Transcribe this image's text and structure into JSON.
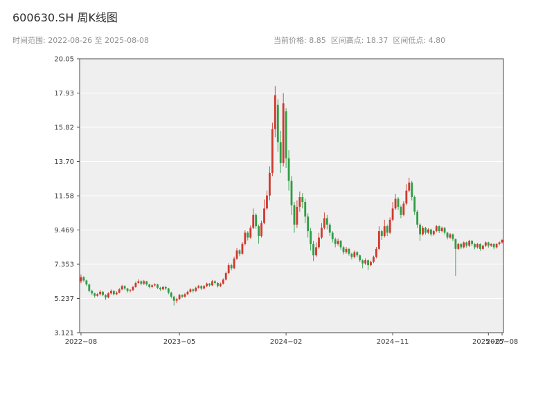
{
  "header": {
    "title": "600630.SH 周K线图",
    "subtitle_left": "时间范围: 2022-08-26 至 2025-08-08",
    "subtitle_right": "当前价格: 8.85  区间高点: 18.37  区间低点: 4.80"
  },
  "chart_data": {
    "type": "candlestick",
    "title": "600630.SH 周K线图",
    "frequency": "weekly",
    "symbol": "600630.SH",
    "current_price": 8.85,
    "range_high": 18.37,
    "range_low": 4.8,
    "date_range": [
      "2022-08-26",
      "2025-08-08"
    ],
    "ylim": [
      3.121,
      20.05
    ],
    "grid": true,
    "legend": "none",
    "xlabel": "",
    "ylabel": "",
    "panel_bg": "#efefef",
    "grid_color": "#ffffff",
    "spine_color": "#4a4a4a",
    "tick_label_color": "#3a3a3a",
    "up_color": "#cf3a2e",
    "down_color": "#2f9e44",
    "y_ticks": [
      {
        "label": "20.05",
        "value": 20.05
      },
      {
        "label": "17.93",
        "value": 17.93
      },
      {
        "label": "15.82",
        "value": 15.82
      },
      {
        "label": "13.70",
        "value": 13.7
      },
      {
        "label": "11.58",
        "value": 11.58
      },
      {
        "label": "9.469",
        "value": 9.469
      },
      {
        "label": "7.353",
        "value": 7.353
      },
      {
        "label": "5.237",
        "value": 5.237
      },
      {
        "label": "3.121",
        "value": 3.121
      }
    ],
    "x_ticks": [
      {
        "label": "2022−08",
        "date": "2022-08-26"
      },
      {
        "label": "2023−05",
        "date": "2023-05-05"
      },
      {
        "label": "2024−02",
        "date": "2024-02-02"
      },
      {
        "label": "2024−11",
        "date": "2024-11-01"
      },
      {
        "label": "2025−07",
        "date": "2025-07-04"
      },
      {
        "label": "2025−08",
        "date": "2025-08-08"
      }
    ],
    "ohlc_fields": [
      "date",
      "open",
      "high",
      "low",
      "close"
    ],
    "candles": [
      [
        "2022-08-26",
        6.3,
        6.72,
        6.18,
        6.55
      ],
      [
        "2022-09-02",
        6.55,
        6.62,
        6.25,
        6.35
      ],
      [
        "2022-09-09",
        6.35,
        6.4,
        6.0,
        6.1
      ],
      [
        "2022-09-16",
        6.1,
        6.15,
        5.62,
        5.7
      ],
      [
        "2022-09-23",
        5.7,
        5.78,
        5.45,
        5.55
      ],
      [
        "2022-09-30",
        5.55,
        5.6,
        5.28,
        5.4
      ],
      [
        "2022-10-07",
        5.4,
        5.58,
        5.35,
        5.5
      ],
      [
        "2022-10-14",
        5.5,
        5.75,
        5.42,
        5.65
      ],
      [
        "2022-10-21",
        5.65,
        5.7,
        5.38,
        5.45
      ],
      [
        "2022-10-28",
        5.45,
        5.5,
        5.15,
        5.3
      ],
      [
        "2022-11-04",
        5.3,
        5.62,
        5.25,
        5.55
      ],
      [
        "2022-11-11",
        5.55,
        5.8,
        5.48,
        5.7
      ],
      [
        "2022-11-18",
        5.7,
        5.75,
        5.42,
        5.5
      ],
      [
        "2022-11-25",
        5.5,
        5.68,
        5.44,
        5.6
      ],
      [
        "2022-12-02",
        5.6,
        5.88,
        5.55,
        5.8
      ],
      [
        "2022-12-09",
        5.8,
        6.08,
        5.74,
        6.0
      ],
      [
        "2022-12-16",
        6.0,
        6.05,
        5.76,
        5.85
      ],
      [
        "2022-12-23",
        5.85,
        5.9,
        5.6,
        5.7
      ],
      [
        "2022-12-30",
        5.7,
        5.82,
        5.62,
        5.75
      ],
      [
        "2023-01-06",
        5.75,
        6.02,
        5.7,
        5.95
      ],
      [
        "2023-01-13",
        5.95,
        6.28,
        5.9,
        6.2
      ],
      [
        "2023-01-20",
        6.2,
        6.42,
        6.12,
        6.3
      ],
      [
        "2023-01-27",
        6.3,
        6.35,
        6.05,
        6.15
      ],
      [
        "2023-02-03",
        6.15,
        6.38,
        6.08,
        6.3
      ],
      [
        "2023-02-10",
        6.3,
        6.33,
        6.02,
        6.1
      ],
      [
        "2023-02-17",
        6.1,
        6.15,
        5.86,
        5.95
      ],
      [
        "2023-02-24",
        5.95,
        6.12,
        5.88,
        6.05
      ],
      [
        "2023-03-03",
        6.05,
        6.18,
        5.98,
        6.1
      ],
      [
        "2023-03-10",
        6.1,
        6.14,
        5.82,
        5.9
      ],
      [
        "2023-03-17",
        5.9,
        5.96,
        5.7,
        5.8
      ],
      [
        "2023-03-24",
        5.8,
        6.02,
        5.74,
        5.95
      ],
      [
        "2023-03-31",
        5.95,
        6.0,
        5.76,
        5.85
      ],
      [
        "2023-04-07",
        5.85,
        5.9,
        5.5,
        5.6
      ],
      [
        "2023-04-14",
        5.6,
        5.65,
        5.24,
        5.35
      ],
      [
        "2023-04-21",
        5.35,
        5.4,
        4.8,
        5.1
      ],
      [
        "2023-04-28",
        5.1,
        5.28,
        4.95,
        5.2
      ],
      [
        "2023-05-05",
        5.2,
        5.52,
        5.14,
        5.45
      ],
      [
        "2023-05-12",
        5.45,
        5.5,
        5.26,
        5.35
      ],
      [
        "2023-05-19",
        5.35,
        5.58,
        5.28,
        5.5
      ],
      [
        "2023-05-26",
        5.5,
        5.72,
        5.44,
        5.65
      ],
      [
        "2023-06-02",
        5.65,
        5.88,
        5.6,
        5.8
      ],
      [
        "2023-06-09",
        5.8,
        5.85,
        5.6,
        5.7
      ],
      [
        "2023-06-16",
        5.7,
        5.96,
        5.64,
        5.9
      ],
      [
        "2023-06-23",
        5.9,
        6.08,
        5.84,
        6.0
      ],
      [
        "2023-06-30",
        6.0,
        6.05,
        5.76,
        5.85
      ],
      [
        "2023-07-07",
        5.85,
        6.06,
        5.8,
        6.0
      ],
      [
        "2023-07-14",
        6.0,
        6.22,
        5.94,
        6.15
      ],
      [
        "2023-07-21",
        6.15,
        6.2,
        5.96,
        6.05
      ],
      [
        "2023-07-28",
        6.05,
        6.38,
        6.0,
        6.3
      ],
      [
        "2023-08-04",
        6.3,
        6.36,
        6.1,
        6.2
      ],
      [
        "2023-08-11",
        6.2,
        6.25,
        5.92,
        6.0
      ],
      [
        "2023-08-18",
        6.0,
        6.22,
        5.94,
        6.15
      ],
      [
        "2023-08-25",
        6.15,
        6.48,
        6.1,
        6.4
      ],
      [
        "2023-09-01",
        6.4,
        6.9,
        6.35,
        6.8
      ],
      [
        "2023-09-08",
        6.8,
        7.42,
        6.74,
        7.3
      ],
      [
        "2023-09-15",
        7.3,
        7.38,
        6.98,
        7.1
      ],
      [
        "2023-09-22",
        7.1,
        7.82,
        7.04,
        7.7
      ],
      [
        "2023-09-29",
        7.7,
        8.35,
        7.62,
        8.2
      ],
      [
        "2023-10-06",
        8.2,
        8.28,
        7.85,
        8.0
      ],
      [
        "2023-10-13",
        8.0,
        8.72,
        7.94,
        8.6
      ],
      [
        "2023-10-20",
        8.6,
        9.45,
        8.52,
        9.3
      ],
      [
        "2023-10-27",
        9.3,
        9.4,
        8.82,
        9.0
      ],
      [
        "2023-11-03",
        9.0,
        9.75,
        8.92,
        9.6
      ],
      [
        "2023-11-10",
        9.6,
        10.8,
        9.52,
        10.4
      ],
      [
        "2023-11-17",
        10.4,
        10.5,
        9.55,
        9.7
      ],
      [
        "2023-11-24",
        9.7,
        9.8,
        8.62,
        9.1
      ],
      [
        "2023-12-01",
        9.1,
        10.05,
        9.0,
        9.9
      ],
      [
        "2023-12-08",
        9.9,
        11.35,
        9.82,
        10.8
      ],
      [
        "2023-12-15",
        10.8,
        11.9,
        10.7,
        11.6
      ],
      [
        "2023-12-22",
        11.6,
        13.4,
        11.3,
        13.0
      ],
      [
        "2023-12-29",
        13.0,
        16.1,
        12.8,
        15.7
      ],
      [
        "2024-01-05",
        15.7,
        18.37,
        15.2,
        17.8
      ],
      [
        "2024-01-12",
        17.2,
        17.55,
        14.3,
        14.9
      ],
      [
        "2024-01-19",
        14.9,
        15.6,
        13.0,
        13.6
      ],
      [
        "2024-01-26",
        13.6,
        17.93,
        13.4,
        17.3
      ],
      [
        "2024-02-02",
        16.8,
        17.0,
        13.3,
        13.9
      ],
      [
        "2024-02-09",
        13.9,
        14.4,
        11.9,
        12.5
      ],
      [
        "2024-02-16",
        12.5,
        12.8,
        10.4,
        11.0
      ],
      [
        "2024-02-23",
        11.0,
        11.2,
        9.3,
        9.8
      ],
      [
        "2024-03-01",
        9.8,
        11.3,
        9.6,
        10.9
      ],
      [
        "2024-03-08",
        10.9,
        11.85,
        10.6,
        11.5
      ],
      [
        "2024-03-15",
        11.5,
        11.75,
        10.8,
        11.2
      ],
      [
        "2024-03-22",
        11.2,
        11.4,
        9.9,
        10.3
      ],
      [
        "2024-03-29",
        10.3,
        10.5,
        9.0,
        9.4
      ],
      [
        "2024-04-05",
        9.4,
        9.6,
        8.2,
        8.6
      ],
      [
        "2024-04-12",
        8.6,
        8.8,
        7.55,
        7.9
      ],
      [
        "2024-04-19",
        7.9,
        8.7,
        7.8,
        8.4
      ],
      [
        "2024-04-26",
        8.4,
        9.3,
        8.3,
        9.0
      ],
      [
        "2024-05-03",
        9.0,
        9.9,
        8.9,
        9.6
      ],
      [
        "2024-05-10",
        9.6,
        10.55,
        9.5,
        10.2
      ],
      [
        "2024-05-17",
        10.2,
        10.4,
        9.5,
        9.8
      ],
      [
        "2024-05-24",
        9.8,
        9.9,
        9.1,
        9.3
      ],
      [
        "2024-05-31",
        9.3,
        9.4,
        8.7,
        8.9
      ],
      [
        "2024-06-07",
        8.9,
        9.0,
        8.4,
        8.6
      ],
      [
        "2024-06-14",
        8.6,
        8.95,
        8.5,
        8.8
      ],
      [
        "2024-06-21",
        8.8,
        8.85,
        8.25,
        8.4
      ],
      [
        "2024-06-28",
        8.4,
        8.48,
        7.95,
        8.1
      ],
      [
        "2024-07-05",
        8.1,
        8.42,
        8.0,
        8.3
      ],
      [
        "2024-07-12",
        8.3,
        8.36,
        7.88,
        8.0
      ],
      [
        "2024-07-19",
        8.0,
        8.06,
        7.65,
        7.8
      ],
      [
        "2024-07-26",
        7.8,
        8.2,
        7.72,
        8.1
      ],
      [
        "2024-08-02",
        8.1,
        8.16,
        7.78,
        7.9
      ],
      [
        "2024-08-09",
        7.9,
        7.95,
        7.48,
        7.6
      ],
      [
        "2024-08-16",
        7.6,
        7.66,
        7.1,
        7.4
      ],
      [
        "2024-08-23",
        7.4,
        7.72,
        7.32,
        7.6
      ],
      [
        "2024-08-30",
        7.6,
        7.65,
        7.0,
        7.3
      ],
      [
        "2024-09-06",
        7.3,
        7.58,
        7.22,
        7.5
      ],
      [
        "2024-09-13",
        7.5,
        7.88,
        7.42,
        7.8
      ],
      [
        "2024-09-20",
        7.8,
        8.42,
        7.72,
        8.3
      ],
      [
        "2024-09-27",
        8.3,
        9.7,
        8.22,
        9.4
      ],
      [
        "2024-10-04",
        9.4,
        9.5,
        8.85,
        9.1
      ],
      [
        "2024-10-11",
        9.1,
        10.1,
        9.0,
        9.7
      ],
      [
        "2024-10-18",
        9.7,
        9.8,
        9.1,
        9.3
      ],
      [
        "2024-10-25",
        9.3,
        10.25,
        9.22,
        10.1
      ],
      [
        "2024-11-01",
        10.1,
        11.2,
        10.0,
        10.8
      ],
      [
        "2024-11-08",
        10.8,
        11.7,
        10.7,
        11.4
      ],
      [
        "2024-11-15",
        11.4,
        11.5,
        10.7,
        10.9
      ],
      [
        "2024-11-22",
        10.9,
        11.0,
        10.2,
        10.4
      ],
      [
        "2024-11-29",
        10.4,
        11.25,
        10.32,
        11.1
      ],
      [
        "2024-12-06",
        11.1,
        12.3,
        11.0,
        11.9
      ],
      [
        "2024-12-13",
        11.9,
        12.7,
        11.8,
        12.4
      ],
      [
        "2024-12-20",
        12.4,
        12.5,
        11.3,
        11.5
      ],
      [
        "2024-12-27",
        11.5,
        11.6,
        10.4,
        10.6
      ],
      [
        "2025-01-03",
        10.6,
        10.7,
        9.6,
        9.8
      ],
      [
        "2025-01-10",
        9.8,
        9.9,
        8.8,
        9.2
      ],
      [
        "2025-01-17",
        9.2,
        9.72,
        9.12,
        9.6
      ],
      [
        "2025-01-24",
        9.6,
        9.66,
        9.18,
        9.3
      ],
      [
        "2025-01-31",
        9.3,
        9.58,
        9.22,
        9.5
      ],
      [
        "2025-02-07",
        9.5,
        9.55,
        9.08,
        9.2
      ],
      [
        "2025-02-14",
        9.2,
        9.48,
        9.12,
        9.4
      ],
      [
        "2025-02-21",
        9.4,
        9.78,
        9.32,
        9.7
      ],
      [
        "2025-02-28",
        9.7,
        9.75,
        9.28,
        9.4
      ],
      [
        "2025-03-07",
        9.4,
        9.68,
        9.32,
        9.6
      ],
      [
        "2025-03-14",
        9.6,
        9.65,
        9.18,
        9.3
      ],
      [
        "2025-03-21",
        9.3,
        9.36,
        8.88,
        9.0
      ],
      [
        "2025-03-28",
        9.0,
        9.28,
        8.92,
        9.2
      ],
      [
        "2025-04-04",
        9.2,
        9.25,
        8.78,
        8.9
      ],
      [
        "2025-04-11",
        8.9,
        8.95,
        6.62,
        8.3
      ],
      [
        "2025-04-18",
        8.3,
        8.68,
        8.22,
        8.6
      ],
      [
        "2025-04-25",
        8.6,
        8.66,
        8.28,
        8.4
      ],
      [
        "2025-05-02",
        8.4,
        8.76,
        8.32,
        8.7
      ],
      [
        "2025-05-09",
        8.7,
        8.75,
        8.38,
        8.5
      ],
      [
        "2025-05-16",
        8.5,
        8.86,
        8.42,
        8.8
      ],
      [
        "2025-05-23",
        8.8,
        8.85,
        8.48,
        8.6
      ],
      [
        "2025-05-30",
        8.6,
        8.65,
        8.28,
        8.4
      ],
      [
        "2025-06-06",
        8.4,
        8.66,
        8.32,
        8.6
      ],
      [
        "2025-06-13",
        8.6,
        8.64,
        8.18,
        8.3
      ],
      [
        "2025-06-20",
        8.3,
        8.56,
        8.22,
        8.5
      ],
      [
        "2025-06-27",
        8.5,
        8.76,
        8.42,
        8.7
      ],
      [
        "2025-07-04",
        8.7,
        8.74,
        8.38,
        8.5
      ],
      [
        "2025-07-11",
        8.5,
        8.66,
        8.42,
        8.6
      ],
      [
        "2025-07-18",
        8.6,
        8.65,
        8.28,
        8.4
      ],
      [
        "2025-07-25",
        8.4,
        8.66,
        8.32,
        8.6
      ],
      [
        "2025-08-01",
        8.6,
        8.76,
        8.52,
        8.7
      ],
      [
        "2025-08-08",
        8.7,
        8.92,
        8.62,
        8.85
      ]
    ]
  }
}
